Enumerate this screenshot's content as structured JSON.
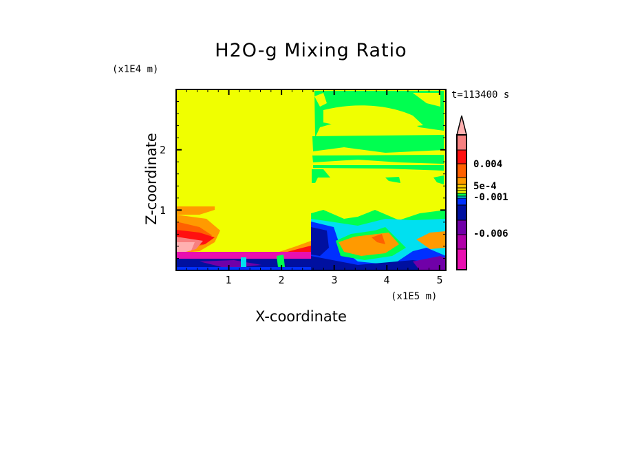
{
  "chart_data": {
    "type": "heatmap",
    "title": "H2O-g Mixing Ratio",
    "xlabel": "X-coordinate",
    "ylabel": "Z-coordinate",
    "x_unit": "(x1E5 m)",
    "y_unit": "(x1E4 m)",
    "time_label": "t=113400 s",
    "xlim": [
      0,
      5.12
    ],
    "ylim": [
      0,
      3.0
    ],
    "x_ticks": [
      "1",
      "2",
      "3",
      "4",
      "5"
    ],
    "y_ticks": [
      "1",
      "2"
    ],
    "colorbar": {
      "labels": [
        "0.004",
        "5e-4",
        "-0.001",
        "-0.006"
      ],
      "colors": [
        "#f78080",
        "#ff1010",
        "#ff6000",
        "#ff9a00",
        "#ffc800",
        "#ffe000",
        "#f0ff00",
        "#00ff50",
        "#00e0f0",
        "#0030ff",
        "#0010a0",
        "#7000a8",
        "#b000a8",
        "#e810b0"
      ],
      "extend_top_color": "#ffb0b0"
    },
    "palette": {
      "yellow": "#f0ff00",
      "green": "#00ff50",
      "cyan": "#00e0f0",
      "blue": "#0030ff",
      "darkblue": "#0010a0",
      "purple": "#7000a8",
      "magenta": "#e810b0",
      "orange": "#ff9a00",
      "orangered": "#ff6000",
      "red": "#ff1010",
      "salmon": "#f78080",
      "pink": "#ffb0b0"
    }
  }
}
